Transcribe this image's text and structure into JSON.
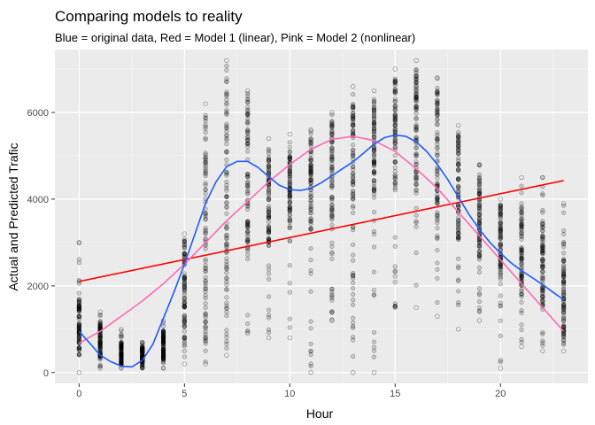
{
  "chart_data": {
    "type": "scatter",
    "title": "Comparing models to reality",
    "subtitle": "Blue = original data, Red = Model 1 (linear), Pink = Model 2 (nonlinear)",
    "xlabel": "Hour",
    "ylabel": "Actual and Predicted Trafic",
    "xlim": [
      -1.15,
      24.15
    ],
    "ylim": [
      -250,
      7450
    ],
    "xticks": [
      0,
      5,
      10,
      15,
      20
    ],
    "yticks": [
      0,
      2000,
      4000,
      6000
    ],
    "x_minor_ticks": [
      2.5,
      7.5,
      12.5,
      17.5,
      22.5
    ],
    "y_minor_ticks": [
      1000,
      3000,
      5000,
      7000
    ],
    "grid": true,
    "panel_background": "#ebebeb",
    "point_color": "#000000",
    "point_alpha": 0.15,
    "points_summary": [
      {
        "x": 0,
        "ymin": 0,
        "ymax": 3000,
        "qlow": 400,
        "qhigh": 1700
      },
      {
        "x": 1,
        "ymin": 100,
        "ymax": 1400,
        "qlow": 300,
        "qhigh": 1100
      },
      {
        "x": 2,
        "ymin": 100,
        "ymax": 1000,
        "qlow": 200,
        "qhigh": 700
      },
      {
        "x": 3,
        "ymin": 100,
        "ymax": 700,
        "qlow": 200,
        "qhigh": 600
      },
      {
        "x": 4,
        "ymin": 100,
        "ymax": 1200,
        "qlow": 300,
        "qhigh": 1000
      },
      {
        "x": 5,
        "ymin": 200,
        "ymax": 3200,
        "qlow": 600,
        "qhigh": 3100
      },
      {
        "x": 6,
        "ymin": 200,
        "ymax": 6200,
        "qlow": 700,
        "qhigh": 6100
      },
      {
        "x": 7,
        "ymin": 400,
        "ymax": 7200,
        "qlow": 1300,
        "qhigh": 7000
      },
      {
        "x": 8,
        "ymin": 900,
        "ymax": 6500,
        "qlow": 3000,
        "qhigh": 6400
      },
      {
        "x": 9,
        "ymin": 800,
        "ymax": 5400,
        "qlow": 3000,
        "qhigh": 5000
      },
      {
        "x": 10,
        "ymin": 800,
        "ymax": 5500,
        "qlow": 3300,
        "qhigh": 5200
      },
      {
        "x": 11,
        "ymin": 0,
        "ymax": 5600,
        "qlow": 3300,
        "qhigh": 5400
      },
      {
        "x": 12,
        "ymin": 1200,
        "ymax": 6000,
        "qlow": 3500,
        "qhigh": 5800
      },
      {
        "x": 13,
        "ymin": 0,
        "ymax": 6600,
        "qlow": 3800,
        "qhigh": 6200
      },
      {
        "x": 14,
        "ymin": 0,
        "ymax": 6500,
        "qlow": 4000,
        "qhigh": 6300
      },
      {
        "x": 15,
        "ymin": 1500,
        "ymax": 7000,
        "qlow": 4200,
        "qhigh": 6800
      },
      {
        "x": 16,
        "ymin": 1500,
        "ymax": 7200,
        "qlow": 4300,
        "qhigh": 7000
      },
      {
        "x": 17,
        "ymin": 1300,
        "ymax": 6800,
        "qlow": 3500,
        "qhigh": 6600
      },
      {
        "x": 18,
        "ymin": 1000,
        "ymax": 5700,
        "qlow": 3000,
        "qhigh": 5500
      },
      {
        "x": 19,
        "ymin": 1200,
        "ymax": 4800,
        "qlow": 2600,
        "qhigh": 4500
      },
      {
        "x": 20,
        "ymin": 100,
        "ymax": 4000,
        "qlow": 2200,
        "qhigh": 3900
      },
      {
        "x": 21,
        "ymin": 600,
        "ymax": 4500,
        "qlow": 1800,
        "qhigh": 3800
      },
      {
        "x": 22,
        "ymin": 500,
        "ymax": 4500,
        "qlow": 1500,
        "qhigh": 3500
      },
      {
        "x": 23,
        "ymin": 500,
        "ymax": 3900,
        "qlow": 800,
        "qhigh": 2800
      }
    ],
    "series": [
      {
        "color": "#ff0000",
        "x": [
          0,
          23
        ],
        "values": [
          2100,
          4430
        ]
      },
      {
        "color": "#ff69b4",
        "x": [
          0,
          1,
          2,
          3,
          4,
          5,
          6,
          7,
          8,
          9,
          10,
          11,
          12,
          13,
          14,
          15,
          16,
          17,
          18,
          19,
          20,
          21,
          22,
          23
        ],
        "values": [
          680,
          950,
          1300,
          1650,
          2050,
          2500,
          3000,
          3500,
          3950,
          4400,
          4800,
          5150,
          5380,
          5450,
          5350,
          5100,
          4700,
          4250,
          3700,
          3150,
          2600,
          2050,
          1500,
          950
        ]
      },
      {
        "color": "#1e5bff",
        "x": [
          0,
          0.5,
          1,
          1.5,
          2,
          2.5,
          3,
          3.5,
          4,
          4.5,
          5,
          5.5,
          6,
          6.5,
          7,
          7.5,
          8,
          8.5,
          9,
          9.5,
          10,
          10.5,
          11,
          11.5,
          12,
          12.5,
          13,
          13.5,
          14,
          14.5,
          15,
          15.5,
          16,
          16.5,
          17,
          17.5,
          18,
          18.5,
          19,
          19.5,
          20,
          20.5,
          21,
          21.5,
          22,
          22.5,
          23
        ],
        "values": [
          950,
          680,
          400,
          250,
          150,
          130,
          280,
          650,
          1250,
          1850,
          2500,
          3200,
          3900,
          4400,
          4750,
          4870,
          4870,
          4730,
          4520,
          4320,
          4220,
          4200,
          4250,
          4380,
          4540,
          4700,
          4860,
          5060,
          5270,
          5420,
          5480,
          5450,
          5320,
          5100,
          4800,
          4450,
          4050,
          3650,
          3300,
          3000,
          2750,
          2530,
          2350,
          2190,
          2030,
          1850,
          1680
        ]
      }
    ]
  }
}
